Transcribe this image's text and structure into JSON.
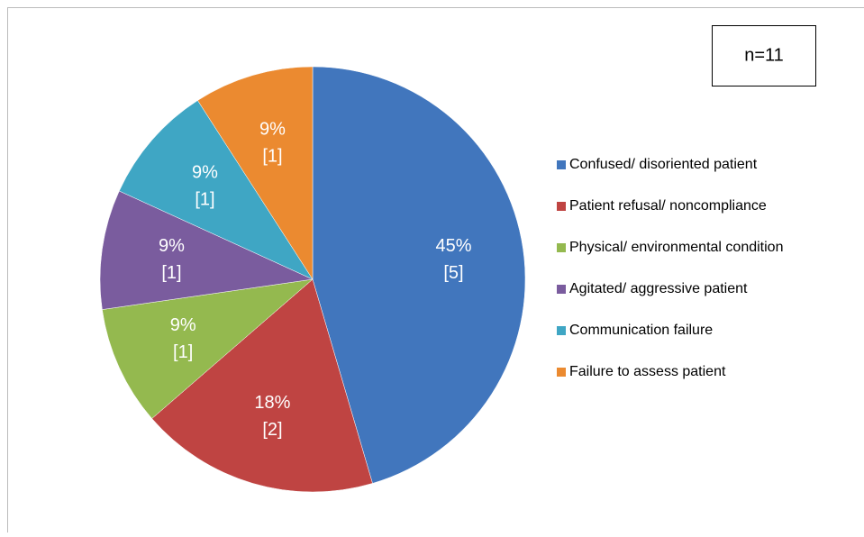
{
  "chart_data": {
    "type": "pie",
    "categories": [
      "Confused/ disoriented patient",
      "Patient refusal/ noncompliance",
      "Physical/ environmental condition",
      "Agitated/ aggressive patient",
      "Communication failure",
      "Failure to assess patient"
    ],
    "values": [
      45,
      18,
      9,
      9,
      9,
      9
    ],
    "value_labels": [
      "45%",
      "18%",
      "9%",
      "9%",
      "9%",
      "9%"
    ],
    "counts": [
      5,
      2,
      1,
      1,
      1,
      1
    ],
    "count_labels": [
      "[5]",
      "[2]",
      "[1]",
      "[1]",
      "[1]",
      "[1]"
    ],
    "colors": [
      "#4176bd",
      "#bf4442",
      "#94b94f",
      "#7a5c9e",
      "#3fa6c4",
      "#eb8a30"
    ],
    "annotation": "n=11",
    "legend": "right"
  }
}
